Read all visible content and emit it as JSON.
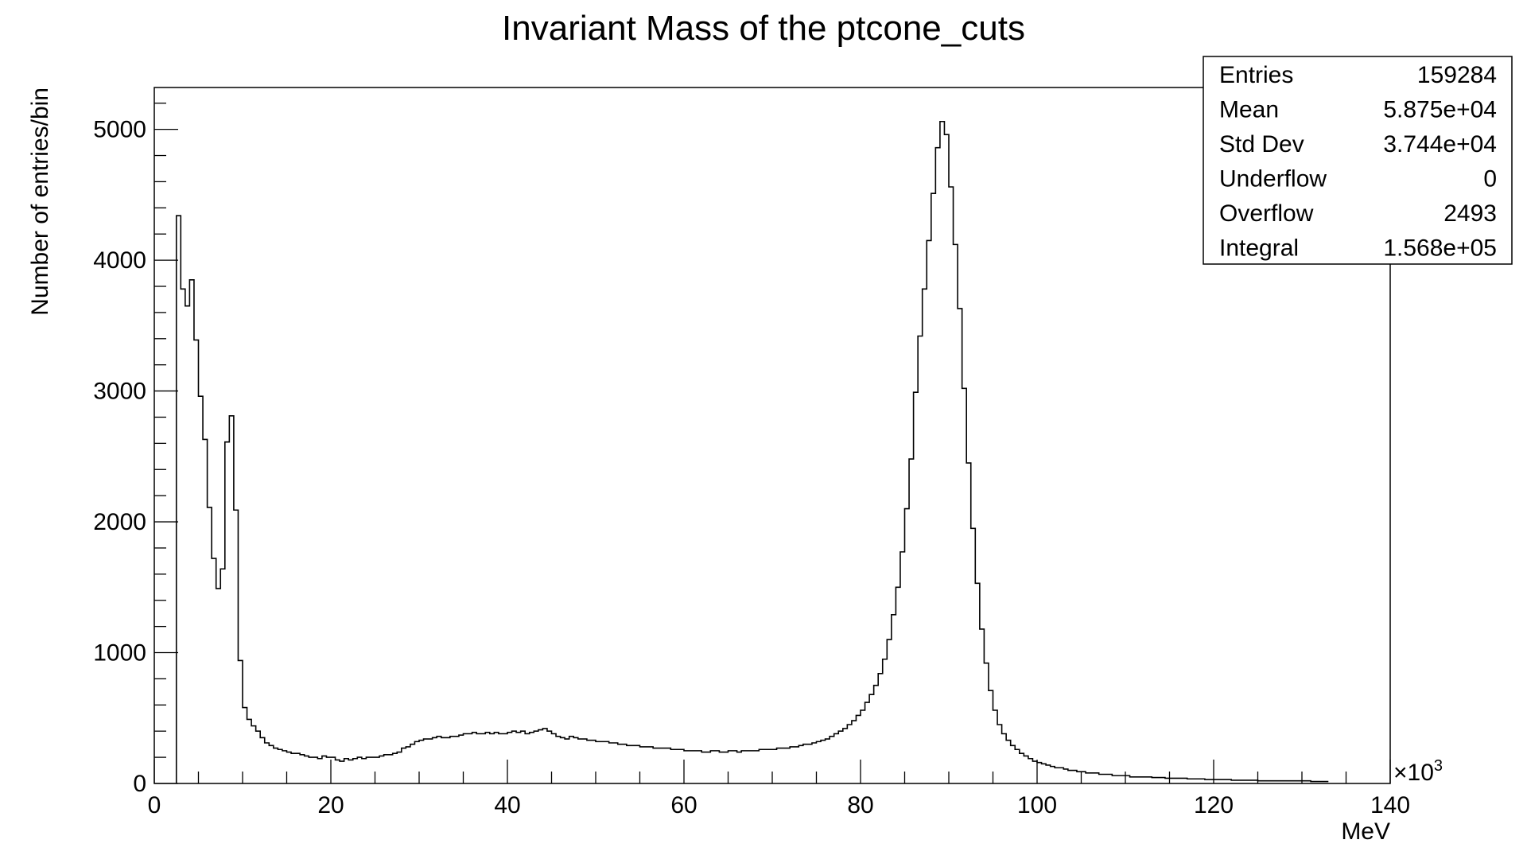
{
  "chart_data": {
    "type": "histogram",
    "title": "Invariant Mass of the ptcone_cuts",
    "xlabel": "MeV",
    "ylabel": "Number of entries/bin",
    "x_multiplier": "×10",
    "x_multiplier_exp": "3",
    "xlim": [
      0,
      140
    ],
    "ylim": [
      0,
      5320
    ],
    "x_ticks": [
      0,
      20,
      40,
      60,
      80,
      100,
      120,
      140
    ],
    "y_ticks": [
      0,
      1000,
      2000,
      3000,
      4000,
      5000
    ],
    "bin_width": 0.5,
    "first_bin_start": 2.5,
    "values": [
      4340,
      3780,
      3650,
      3850,
      3390,
      2960,
      2630,
      2110,
      1720,
      1490,
      1640,
      2610,
      2810,
      2090,
      940,
      580,
      490,
      440,
      400,
      350,
      310,
      290,
      270,
      260,
      250,
      240,
      230,
      230,
      220,
      210,
      200,
      200,
      190,
      210,
      200,
      200,
      180,
      170,
      190,
      180,
      190,
      200,
      190,
      200,
      200,
      200,
      210,
      220,
      220,
      230,
      240,
      270,
      280,
      300,
      320,
      330,
      340,
      340,
      350,
      360,
      350,
      350,
      360,
      360,
      370,
      380,
      380,
      390,
      380,
      380,
      390,
      380,
      390,
      380,
      380,
      390,
      400,
      390,
      400,
      380,
      390,
      400,
      410,
      420,
      400,
      380,
      360,
      350,
      340,
      360,
      350,
      340,
      340,
      330,
      330,
      320,
      320,
      320,
      310,
      310,
      300,
      300,
      290,
      290,
      290,
      280,
      280,
      280,
      270,
      270,
      270,
      270,
      260,
      260,
      260,
      250,
      250,
      250,
      250,
      240,
      240,
      250,
      250,
      240,
      240,
      250,
      250,
      240,
      250,
      250,
      250,
      250,
      260,
      260,
      260,
      260,
      270,
      270,
      270,
      280,
      280,
      290,
      300,
      300,
      310,
      320,
      330,
      340,
      360,
      380,
      400,
      420,
      450,
      480,
      520,
      560,
      620,
      680,
      750,
      840,
      950,
      1100,
      1290,
      1500,
      1770,
      2100,
      2480,
      2990,
      3420,
      3780,
      4150,
      4510,
      4860,
      5060,
      4960,
      4560,
      4120,
      3630,
      3020,
      2450,
      1950,
      1530,
      1180,
      920,
      710,
      560,
      450,
      380,
      330,
      290,
      260,
      230,
      210,
      190,
      170,
      160,
      150,
      140,
      130,
      120,
      120,
      110,
      100,
      100,
      90,
      90,
      80,
      80,
      80,
      70,
      70,
      70,
      60,
      60,
      60,
      60,
      50,
      50,
      50,
      50,
      50,
      45,
      45,
      45,
      40,
      40,
      40,
      40,
      40,
      35,
      35,
      35,
      35,
      30,
      30,
      30,
      30,
      30,
      30,
      25,
      25,
      25,
      25,
      25,
      25,
      20,
      20,
      20,
      20,
      20,
      20,
      20,
      20,
      20,
      20,
      20,
      20,
      15,
      15,
      15,
      15
    ]
  },
  "stats": {
    "rows": [
      {
        "label": "Entries",
        "value": "159284"
      },
      {
        "label": "Mean",
        "value": "5.875e+04"
      },
      {
        "label": "Std Dev",
        "value": "3.744e+04"
      },
      {
        "label": "Underflow",
        "value": "0"
      },
      {
        "label": "Overflow",
        "value": "2493"
      },
      {
        "label": "Integral",
        "value": "1.568e+05"
      }
    ]
  }
}
